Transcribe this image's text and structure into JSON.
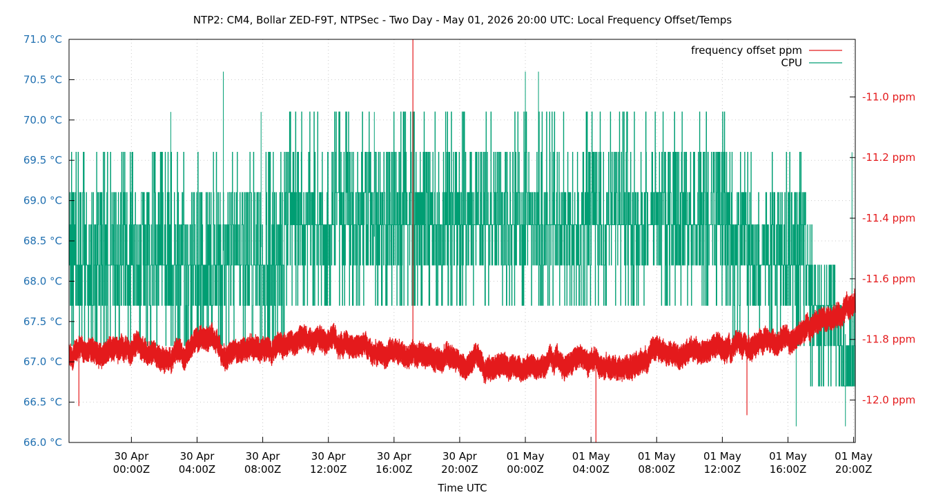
{
  "chart_data": {
    "type": "line",
    "title": "NTP2: CM4, Bollar ZED-F9T, NTPSec - Two Day - May 01, 2026 20:00 UTC: Local Frequency Offset/Temps",
    "xlabel": "Time UTC",
    "x_ticks": [
      {
        "t": 1.5,
        "line1": "30 Apr",
        "line2": "00:00Z"
      },
      {
        "t": 5.5,
        "line1": "30 Apr",
        "line2": "04:00Z"
      },
      {
        "t": 9.5,
        "line1": "30 Apr",
        "line2": "08:00Z"
      },
      {
        "t": 13.5,
        "line1": "30 Apr",
        "line2": "12:00Z"
      },
      {
        "t": 17.5,
        "line1": "30 Apr",
        "line2": "16:00Z"
      },
      {
        "t": 21.5,
        "line1": "30 Apr",
        "line2": "20:00Z"
      },
      {
        "t": 25.5,
        "line1": "01 May",
        "line2": "00:00Z"
      },
      {
        "t": 29.5,
        "line1": "01 May",
        "line2": "04:00Z"
      },
      {
        "t": 33.5,
        "line1": "01 May",
        "line2": "08:00Z"
      },
      {
        "t": 37.5,
        "line1": "01 May",
        "line2": "12:00Z"
      },
      {
        "t": 41.5,
        "line1": "01 May",
        "line2": "16:00Z"
      },
      {
        "t": 45.5,
        "line1": "01 May",
        "line2": "20:00Z"
      }
    ],
    "xlim": [
      -2.3,
      45.6
    ],
    "y_left": {
      "unit": "°C",
      "ylim": [
        66.0,
        71.0
      ],
      "ticks": [
        "71.0 °C",
        "70.5 °C",
        "70.0 °C",
        "69.5 °C",
        "69.0 °C",
        "68.5 °C",
        "68.0 °C",
        "67.5 °C",
        "67.0 °C",
        "66.5 °C",
        "66.0 °C"
      ],
      "tick_values": [
        71.0,
        70.5,
        70.0,
        69.5,
        69.0,
        68.5,
        68.0,
        67.5,
        67.0,
        66.5,
        66.0
      ]
    },
    "y_right": {
      "unit": "ppm",
      "ylim": [
        -12.14,
        -10.81
      ],
      "ticks": [
        "-11.0 ppm",
        "-11.2 ppm",
        "-11.4 ppm",
        "-11.6 ppm",
        "-11.8 ppm",
        "-12.0 ppm"
      ],
      "tick_values": [
        -11.0,
        -11.2,
        -11.4,
        -11.6,
        -11.8,
        -12.0
      ]
    },
    "grid": true,
    "legend_position": "top-right",
    "series": [
      {
        "name": "frequency offset ppm",
        "axis": "right",
        "color": "#e41a1c",
        "style": "dense noisy band",
        "anchors": [
          [
            -2.3,
            -11.86
          ],
          [
            0,
            -11.84
          ],
          [
            2,
            -11.83
          ],
          [
            4,
            -11.85
          ],
          [
            6,
            -11.82
          ],
          [
            8,
            -11.85
          ],
          [
            10,
            -11.84
          ],
          [
            12,
            -11.8
          ],
          [
            14,
            -11.82
          ],
          [
            16,
            -11.82
          ],
          [
            18,
            -11.84
          ],
          [
            20,
            -11.85
          ],
          [
            22,
            -11.87
          ],
          [
            24,
            -11.88
          ],
          [
            26,
            -11.89
          ],
          [
            28,
            -11.88
          ],
          [
            30,
            -11.88
          ],
          [
            32,
            -11.87
          ],
          [
            34,
            -11.85
          ],
          [
            36,
            -11.83
          ],
          [
            38,
            -11.83
          ],
          [
            40,
            -11.82
          ],
          [
            42,
            -11.79
          ],
          [
            43,
            -11.76
          ],
          [
            44,
            -11.73
          ],
          [
            45,
            -11.7
          ],
          [
            45.6,
            -11.69
          ]
        ],
        "noise_amplitude": 0.04,
        "spikes": [
          {
            "t": 18.65,
            "value": -10.81
          },
          {
            "t": 29.8,
            "value": -12.14
          },
          {
            "t": 39.0,
            "value": -12.05
          },
          {
            "t": -1.7,
            "value": -12.02
          }
        ]
      },
      {
        "name": "CPU",
        "axis": "left",
        "color": "#009e73",
        "style": "quantized step trace",
        "levels": [
          66.2,
          66.7,
          67.2,
          67.7,
          68.2,
          68.7,
          69.1,
          69.6,
          70.1,
          70.6
        ],
        "base_band": [
          [
            -2.3,
            68.2
          ],
          [
            24,
            68.7
          ],
          [
            34,
            68.7
          ],
          [
            42,
            68.2
          ],
          [
            43.5,
            67.7
          ],
          [
            45.6,
            67.2
          ]
        ],
        "peaks": [
          {
            "t": 3.9,
            "value": 70.1
          },
          {
            "t": 7.1,
            "value": 70.6
          },
          {
            "t": 9.4,
            "value": 70.1
          },
          {
            "t": 16.3,
            "value": 70.1
          },
          {
            "t": 25.5,
            "value": 70.6
          },
          {
            "t": 26.3,
            "value": 70.6
          },
          {
            "t": 42.0,
            "value": 66.2
          },
          {
            "t": 45.0,
            "value": 66.2
          },
          {
            "t": 45.4,
            "value": 69.6
          }
        ]
      }
    ]
  }
}
